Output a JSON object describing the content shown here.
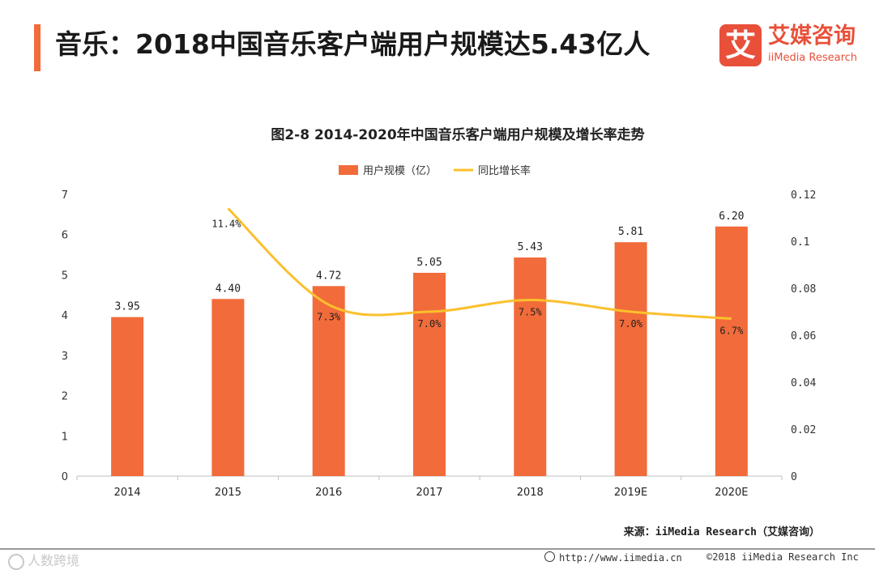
{
  "page": {
    "title": "音乐：2018中国音乐客户端用户规模达5.43亿人"
  },
  "logo": {
    "mark": "艾",
    "name_cn": "艾媒咨询",
    "name_en": "iiMedia Research"
  },
  "chart_data": {
    "type": "bar",
    "title": "图2-8 2014-2020年中国音乐客户端用户规模及增长率走势",
    "categories": [
      "2014",
      "2015",
      "2016",
      "2017",
      "2018",
      "2019E",
      "2020E"
    ],
    "series": [
      {
        "name": "用户规模（亿）",
        "type": "bar",
        "axis": "left",
        "color": "#f26b3a",
        "values": [
          3.95,
          4.4,
          4.72,
          5.05,
          5.43,
          5.81,
          6.2
        ],
        "value_labels": [
          "3.95",
          "4.40",
          "4.72",
          "5.05",
          "5.43",
          "5.81",
          "6.20"
        ]
      },
      {
        "name": "同比增长率",
        "type": "line",
        "smooth": true,
        "axis": "right",
        "color": "#fbc02d",
        "values": [
          null,
          0.114,
          0.073,
          0.07,
          0.075,
          0.07,
          0.067
        ],
        "value_labels": [
          null,
          "11.4%",
          "7.3%",
          "7.0%",
          "7.5%",
          "7.0%",
          "6.7%"
        ]
      }
    ],
    "y_left": {
      "min": 0,
      "max": 7,
      "ticks": [
        "0",
        "1",
        "2",
        "3",
        "4",
        "5",
        "6",
        "7"
      ]
    },
    "y_right": {
      "min": 0,
      "max": 0.12,
      "ticks": [
        "0",
        "0.02",
        "0.04",
        "0.06",
        "0.08",
        "0.1",
        "0.12"
      ]
    },
    "legend_position": "top-center",
    "grid": false
  },
  "source": "来源：iiMedia Research（艾媒咨询）",
  "footer": {
    "watermark": "人数跨境",
    "url": "http://www.iimedia.cn",
    "copyright": "©2018  iiMedia Research  Inc"
  }
}
